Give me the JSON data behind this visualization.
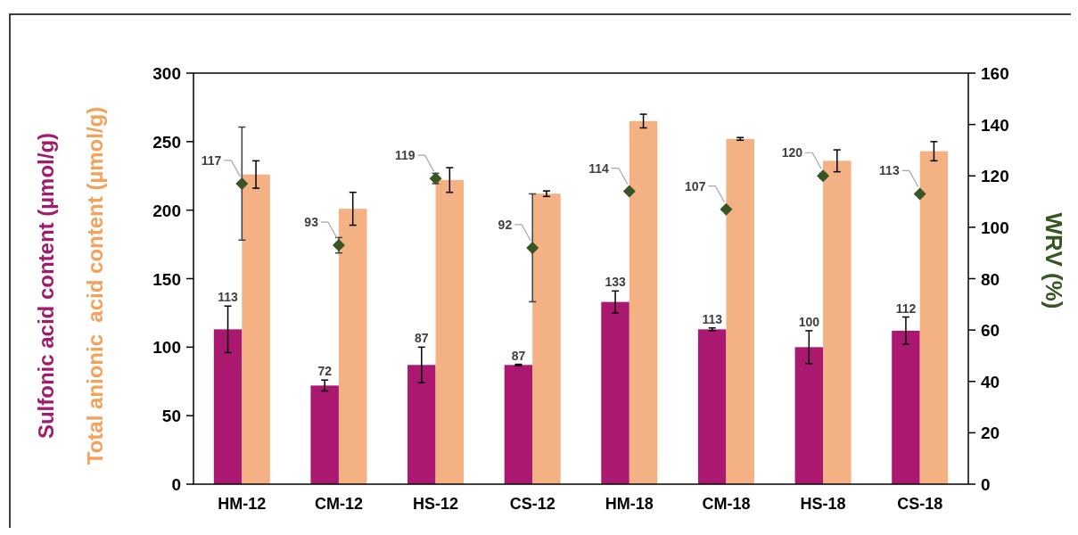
{
  "chart_data": {
    "type": "bar",
    "ylabel": "Sulfonic acid content (µmol/g)",
    "y2label": "WRV (%)",
    "annotations": [
      "Total anionic  acid content (µmol/g)"
    ],
    "categories": [
      "HM-12",
      "CM-12",
      "HS-12",
      "CS-12",
      "HM-18",
      "CM-18",
      "HS-18",
      "CS-18"
    ],
    "series": [
      {
        "color": "#ab186f",
        "values": [
          113,
          72,
          87,
          87,
          133,
          113,
          100,
          112
        ],
        "errors": [
          17,
          4,
          13,
          0.5,
          8,
          1,
          12,
          10
        ],
        "value_labels": [
          "113",
          "72",
          "87",
          "87",
          "133",
          "113",
          "100",
          "112"
        ]
      },
      {
        "color": "#f4b183",
        "values": [
          226,
          201,
          222,
          212,
          265,
          252,
          236,
          243
        ],
        "errors": [
          10,
          12,
          9,
          2,
          5,
          1,
          8,
          7
        ]
      },
      {
        "type": "scatter",
        "axis": "y2",
        "color": "#375623",
        "marker": "diamond",
        "values": [
          117,
          93,
          119,
          92,
          114,
          107,
          120,
          113
        ],
        "errors": [
          22,
          3,
          2,
          21,
          null,
          null,
          1,
          null
        ],
        "value_labels": [
          "117",
          "93",
          "119",
          "92",
          "114",
          "107",
          "120",
          "113"
        ]
      }
    ],
    "ylim": [
      0,
      300
    ],
    "yticks": [
      0,
      50,
      100,
      150,
      200,
      250,
      300
    ],
    "y2lim": [
      0,
      160
    ],
    "y2ticks": [
      0,
      20,
      40,
      60,
      80,
      100,
      120,
      140,
      160
    ],
    "grid": false
  }
}
